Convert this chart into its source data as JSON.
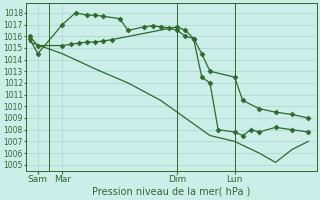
{
  "bg_color": "#cceee8",
  "grid_color": "#aad4cc",
  "line_color": "#2d6a2d",
  "xlabel": "Pression niveau de la mer( hPa )",
  "ylim": [
    1004.5,
    1018.8
  ],
  "yticks": [
    1005,
    1006,
    1007,
    1008,
    1009,
    1010,
    1011,
    1012,
    1013,
    1014,
    1015,
    1016,
    1017,
    1018
  ],
  "xtick_labels": [
    "Sam",
    "Mar",
    "Dim",
    "Lun"
  ],
  "xtick_positions": [
    0.5,
    2.0,
    9.0,
    12.5
  ],
  "vlines": [
    1.2,
    9.0,
    12.5
  ],
  "xlim": [
    -0.2,
    17.5
  ],
  "line1_x": [
    0,
    0.5,
    2.0,
    2.5,
    3.0,
    3.5,
    4.0,
    4.5,
    5.0,
    9.0,
    9.5,
    10.0,
    10.5,
    11.0,
    12.5,
    13.0,
    14.0,
    15.0,
    16.0,
    17.0
  ],
  "line1_y": [
    1016.0,
    1015.2,
    1015.2,
    1015.3,
    1015.4,
    1015.5,
    1015.5,
    1015.6,
    1015.7,
    1016.8,
    1016.5,
    1015.8,
    1014.5,
    1013.0,
    1012.5,
    1010.5,
    1009.8,
    1009.5,
    1009.3,
    1009.0
  ],
  "line2_x": [
    0,
    0.5,
    2.0,
    2.8,
    3.5,
    4.0,
    4.5,
    5.5,
    6.0,
    7.0,
    7.5,
    8.0,
    8.5,
    9.0,
    9.5,
    10.0,
    10.5,
    11.0,
    11.5,
    12.5,
    13.0,
    13.5,
    14.0,
    15.0,
    16.0,
    17.0
  ],
  "line2_y": [
    1015.8,
    1014.5,
    1017.0,
    1018.0,
    1017.8,
    1017.8,
    1017.7,
    1017.5,
    1016.5,
    1016.8,
    1016.9,
    1016.8,
    1016.7,
    1016.5,
    1016.0,
    1015.8,
    1012.5,
    1012.0,
    1008.0,
    1007.8,
    1007.5,
    1008.0,
    1007.8,
    1008.2,
    1008.0,
    1007.8
  ],
  "line3_x": [
    0,
    2.0,
    4.0,
    6.0,
    8.0,
    9.0,
    10.0,
    11.0,
    12.5,
    14.0,
    15.0,
    16.0,
    17.0
  ],
  "line3_y": [
    1015.5,
    1014.5,
    1013.2,
    1012.0,
    1010.5,
    1009.5,
    1008.5,
    1007.5,
    1007.0,
    1006.0,
    1005.2,
    1006.3,
    1007.0
  ]
}
